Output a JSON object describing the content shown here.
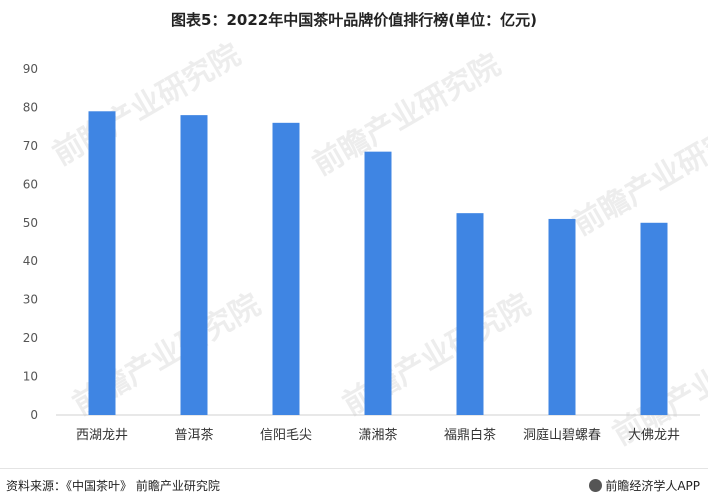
{
  "title": "图表5：2022年中国茶叶品牌价值排行榜(单位：亿元)",
  "watermark": "前瞻产业研究院",
  "source": "资料来源：《中国茶叶》 前瞻产业研究院",
  "logo_text": "前瞻经济学人APP",
  "colors": {
    "bar": "#3f85e3",
    "axis": "#d0d0d0",
    "tick_text": "#555555"
  },
  "chart_data": {
    "type": "bar",
    "title": "图表5：2022年中国茶叶品牌价值排行榜(单位：亿元)",
    "categories": [
      "西湖龙井",
      "普洱茶",
      "信阳毛尖",
      "潇湘茶",
      "福鼎白茶",
      "洞庭山碧螺春",
      "大佛龙井"
    ],
    "values": [
      79,
      78,
      76,
      68.5,
      52.5,
      51,
      50
    ],
    "ylim": [
      0,
      90
    ],
    "yticks": [
      0,
      10,
      20,
      30,
      40,
      50,
      60,
      70,
      80,
      90
    ],
    "grid": false,
    "legend": "none",
    "xlabel": "",
    "ylabel": ""
  }
}
